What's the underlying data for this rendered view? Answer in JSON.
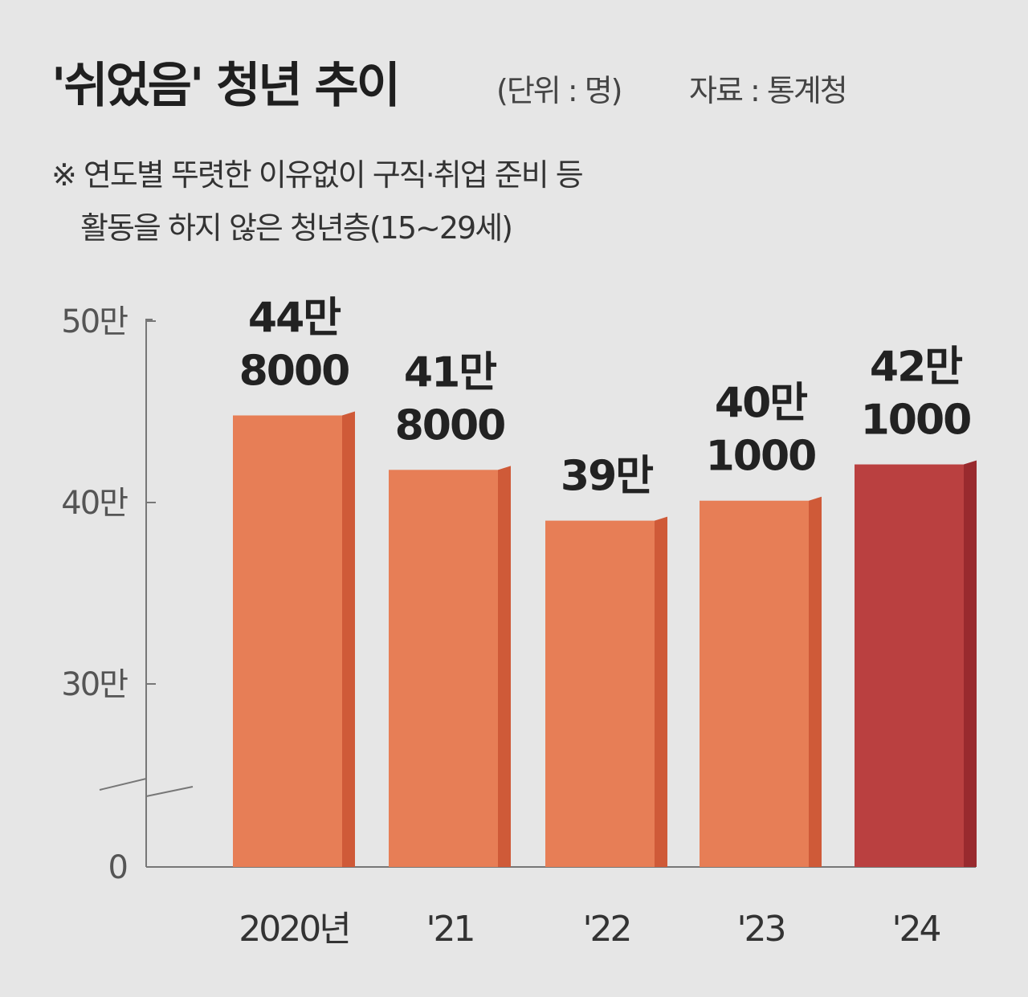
{
  "title": "'쉬었음' 청년 추이",
  "unit_note": "(단위 : 명)",
  "source_note": "자료 : 통계청",
  "note_line1": "※ 연도별  뚜렷한 이유없이 구직·취업 준비 등",
  "note_line2": "활동을 하지 않은 청년층(15~29세)",
  "colors": {
    "bar": "#e77e56",
    "bar_side": "#cf5a38",
    "highlight_bar": "#ba4040",
    "highlight_side": "#992a2e",
    "axis": "#777777"
  },
  "chart_data": {
    "type": "bar",
    "categories": [
      "2020년",
      "'21",
      "'22",
      "'23",
      "'24"
    ],
    "values": [
      448000,
      418000,
      390000,
      401000,
      421000
    ],
    "data_labels": [
      [
        "44만",
        "8000"
      ],
      [
        "41만",
        "8000"
      ],
      [
        "39만"
      ],
      [
        "40만",
        "1000"
      ],
      [
        "42만",
        "1000"
      ]
    ],
    "highlight_index": 4,
    "y_ticks": [
      {
        "value": 0,
        "label": "0"
      },
      {
        "value": 300000,
        "label": "30만"
      },
      {
        "value": 400000,
        "label": "40만"
      },
      {
        "value": 500000,
        "label": "50만"
      }
    ],
    "ylim": [
      0,
      500000
    ],
    "axis_break": true,
    "grid": false,
    "legend": "none"
  }
}
